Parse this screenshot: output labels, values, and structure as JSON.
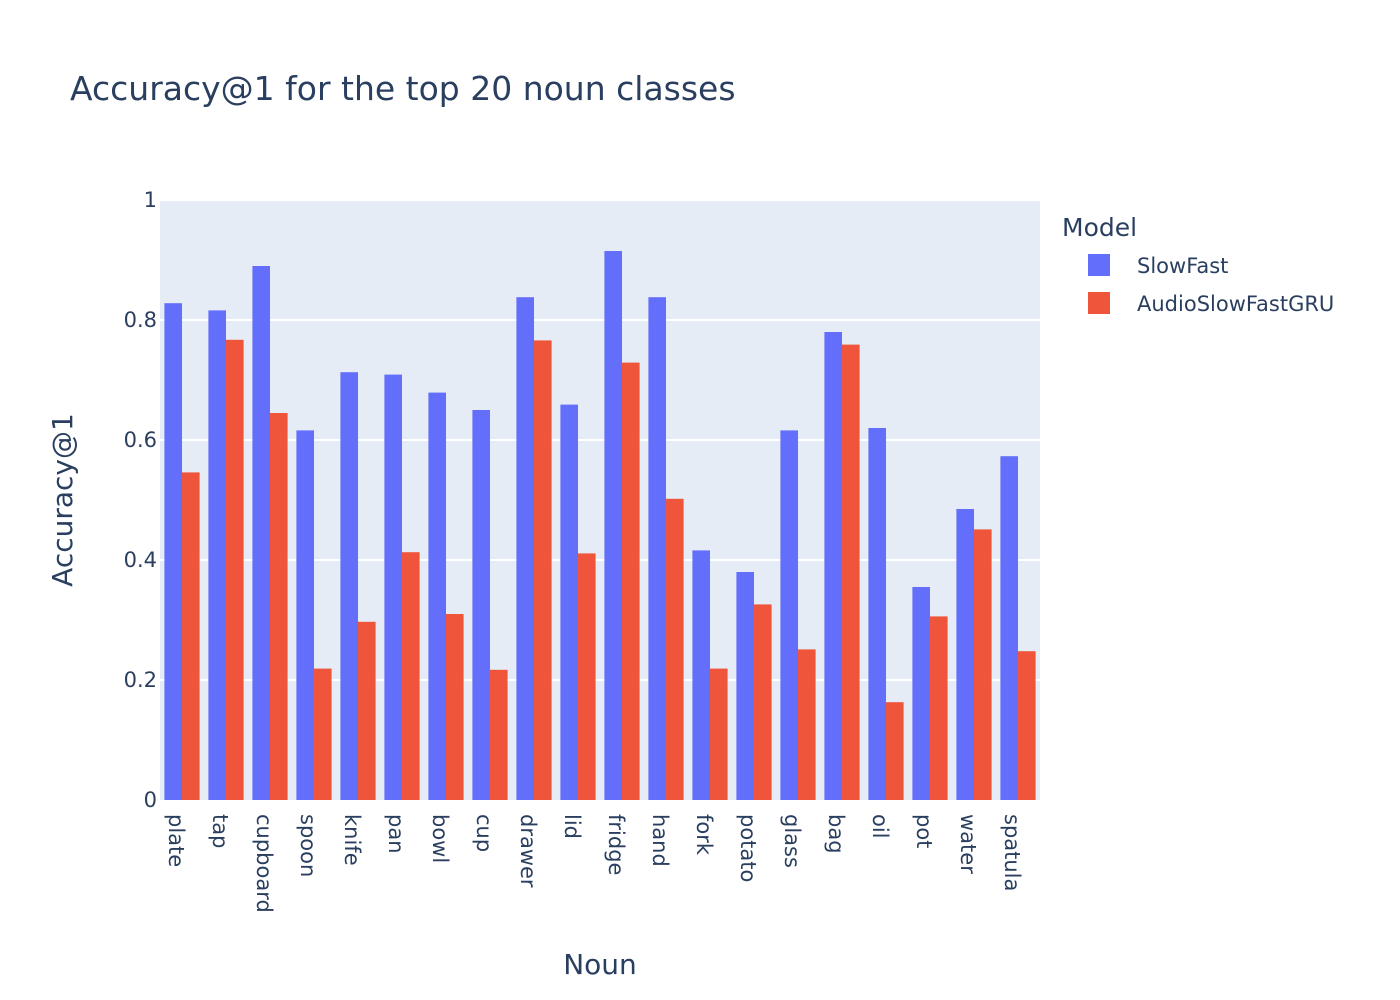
{
  "chart_data": {
    "type": "bar",
    "title": "Accuracy@1 for the top 20 noun classes",
    "xlabel": "Noun",
    "ylabel": "Accuracy@1",
    "ylim": [
      0,
      1
    ],
    "yticks": [
      0,
      0.2,
      0.4,
      0.6,
      0.8,
      1
    ],
    "ytick_labels": [
      "0",
      "0.2",
      "0.4",
      "0.6",
      "0.8",
      "1"
    ],
    "grid": true,
    "legend_title": "Model",
    "legend_position": "top-right",
    "categories": [
      "plate",
      "tap",
      "cupboard",
      "spoon",
      "knife",
      "pan",
      "bowl",
      "cup",
      "drawer",
      "lid",
      "fridge",
      "hand",
      "fork",
      "potato",
      "glass",
      "bag",
      "oil",
      "pot",
      "water",
      "spatula"
    ],
    "series": [
      {
        "name": "SlowFast",
        "color": "#636efa",
        "values": [
          0.828,
          0.816,
          0.89,
          0.616,
          0.713,
          0.709,
          0.679,
          0.65,
          0.838,
          0.659,
          0.915,
          0.838,
          0.416,
          0.38,
          0.616,
          0.78,
          0.62,
          0.355,
          0.485,
          0.573
        ]
      },
      {
        "name": "AudioSlowFastGRU",
        "color": "#ef553b",
        "values": [
          0.546,
          0.767,
          0.645,
          0.219,
          0.297,
          0.413,
          0.31,
          0.217,
          0.766,
          0.411,
          0.729,
          0.502,
          0.219,
          0.326,
          0.251,
          0.759,
          0.163,
          0.306,
          0.451,
          0.248
        ]
      }
    ],
    "plot_background": "#e5ecf6",
    "gridline_color": "#ffffff",
    "text_color": "#2a3f5f"
  }
}
